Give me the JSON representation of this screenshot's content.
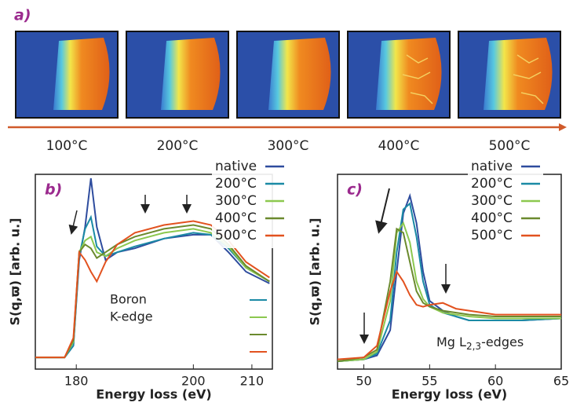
{
  "panel_a": {
    "label": "a)",
    "temperatures": [
      "100°C",
      "200°C",
      "300°C",
      "400°C",
      "500°C"
    ]
  },
  "chart_data": [
    {
      "type": "line",
      "label": "b)",
      "xlabel": "Energy loss (eV)",
      "ylabel": "S(q,ϖ) [arb. u.]",
      "annotation": [
        "Boron",
        "K-edge"
      ],
      "x": [
        173,
        178,
        179.5,
        180.5,
        181.5,
        182.5,
        183.5,
        185,
        187,
        190,
        195,
        200,
        203,
        206,
        209,
        213
      ],
      "series": [
        {
          "name": "native",
          "color": "#2e4c9e",
          "values": [
            0.06,
            0.06,
            0.12,
            0.56,
            0.73,
            0.98,
            0.73,
            0.56,
            0.6,
            0.62,
            0.67,
            0.69,
            0.69,
            0.6,
            0.5,
            0.44
          ]
        },
        {
          "name": "200°C",
          "color": "#1b8aa5",
          "values": [
            0.06,
            0.06,
            0.12,
            0.58,
            0.72,
            0.78,
            0.63,
            0.58,
            0.6,
            0.63,
            0.67,
            0.7,
            0.69,
            0.62,
            0.52,
            0.45
          ]
        },
        {
          "name": "300°C",
          "color": "#8cc84f",
          "values": [
            0.06,
            0.06,
            0.14,
            0.6,
            0.66,
            0.68,
            0.6,
            0.58,
            0.62,
            0.66,
            0.7,
            0.72,
            0.7,
            0.63,
            0.52,
            0.45
          ]
        },
        {
          "name": "400°C",
          "color": "#6b8a2e",
          "values": [
            0.06,
            0.06,
            0.15,
            0.6,
            0.64,
            0.62,
            0.57,
            0.6,
            0.64,
            0.68,
            0.72,
            0.74,
            0.72,
            0.64,
            0.53,
            0.45
          ]
        },
        {
          "name": "500°C",
          "color": "#e2521f",
          "values": [
            0.06,
            0.06,
            0.16,
            0.6,
            0.56,
            0.5,
            0.45,
            0.55,
            0.64,
            0.7,
            0.74,
            0.76,
            0.74,
            0.66,
            0.55,
            0.47
          ]
        }
      ],
      "xlim": [
        173,
        213.5
      ],
      "ylim": [
        0,
        1
      ],
      "xticks": [
        180,
        200,
        210
      ]
    },
    {
      "type": "line",
      "label": "c)",
      "xlabel": "Energy loss (eV)",
      "ylabel": "S(q,ϖ) [arb. u.]",
      "annotation": {
        "text": "Mg L",
        "subscript": "2,3",
        "suffix": "-edges"
      },
      "x": [
        48,
        50,
        51,
        52,
        52.5,
        53,
        53.5,
        54,
        54.5,
        55,
        56,
        57,
        58,
        60,
        62,
        65
      ],
      "series": [
        {
          "name": "native",
          "color": "#2e4c9e",
          "values": [
            0.04,
            0.05,
            0.07,
            0.2,
            0.5,
            0.8,
            0.89,
            0.75,
            0.5,
            0.35,
            0.3,
            0.27,
            0.25,
            0.25,
            0.25,
            0.26
          ]
        },
        {
          "name": "200°C",
          "color": "#1b8aa5",
          "values": [
            0.04,
            0.05,
            0.08,
            0.25,
            0.6,
            0.82,
            0.85,
            0.68,
            0.45,
            0.33,
            0.29,
            0.27,
            0.25,
            0.25,
            0.25,
            0.26
          ]
        },
        {
          "name": "300°C",
          "color": "#8cc84f",
          "values": [
            0.04,
            0.05,
            0.09,
            0.35,
            0.7,
            0.75,
            0.65,
            0.45,
            0.36,
            0.32,
            0.29,
            0.28,
            0.27,
            0.26,
            0.26,
            0.26
          ]
        },
        {
          "name": "400°C",
          "color": "#6b8a2e",
          "values": [
            0.04,
            0.06,
            0.1,
            0.45,
            0.72,
            0.7,
            0.55,
            0.4,
            0.34,
            0.32,
            0.3,
            0.29,
            0.28,
            0.27,
            0.27,
            0.27
          ]
        },
        {
          "name": "500°C",
          "color": "#e2521f",
          "values": [
            0.05,
            0.06,
            0.12,
            0.4,
            0.5,
            0.45,
            0.38,
            0.33,
            0.32,
            0.33,
            0.34,
            0.31,
            0.3,
            0.28,
            0.28,
            0.28
          ]
        }
      ],
      "xlim": [
        48,
        65
      ],
      "ylim": [
        0,
        1
      ],
      "xticks": [
        50,
        55,
        60,
        65
      ]
    }
  ]
}
